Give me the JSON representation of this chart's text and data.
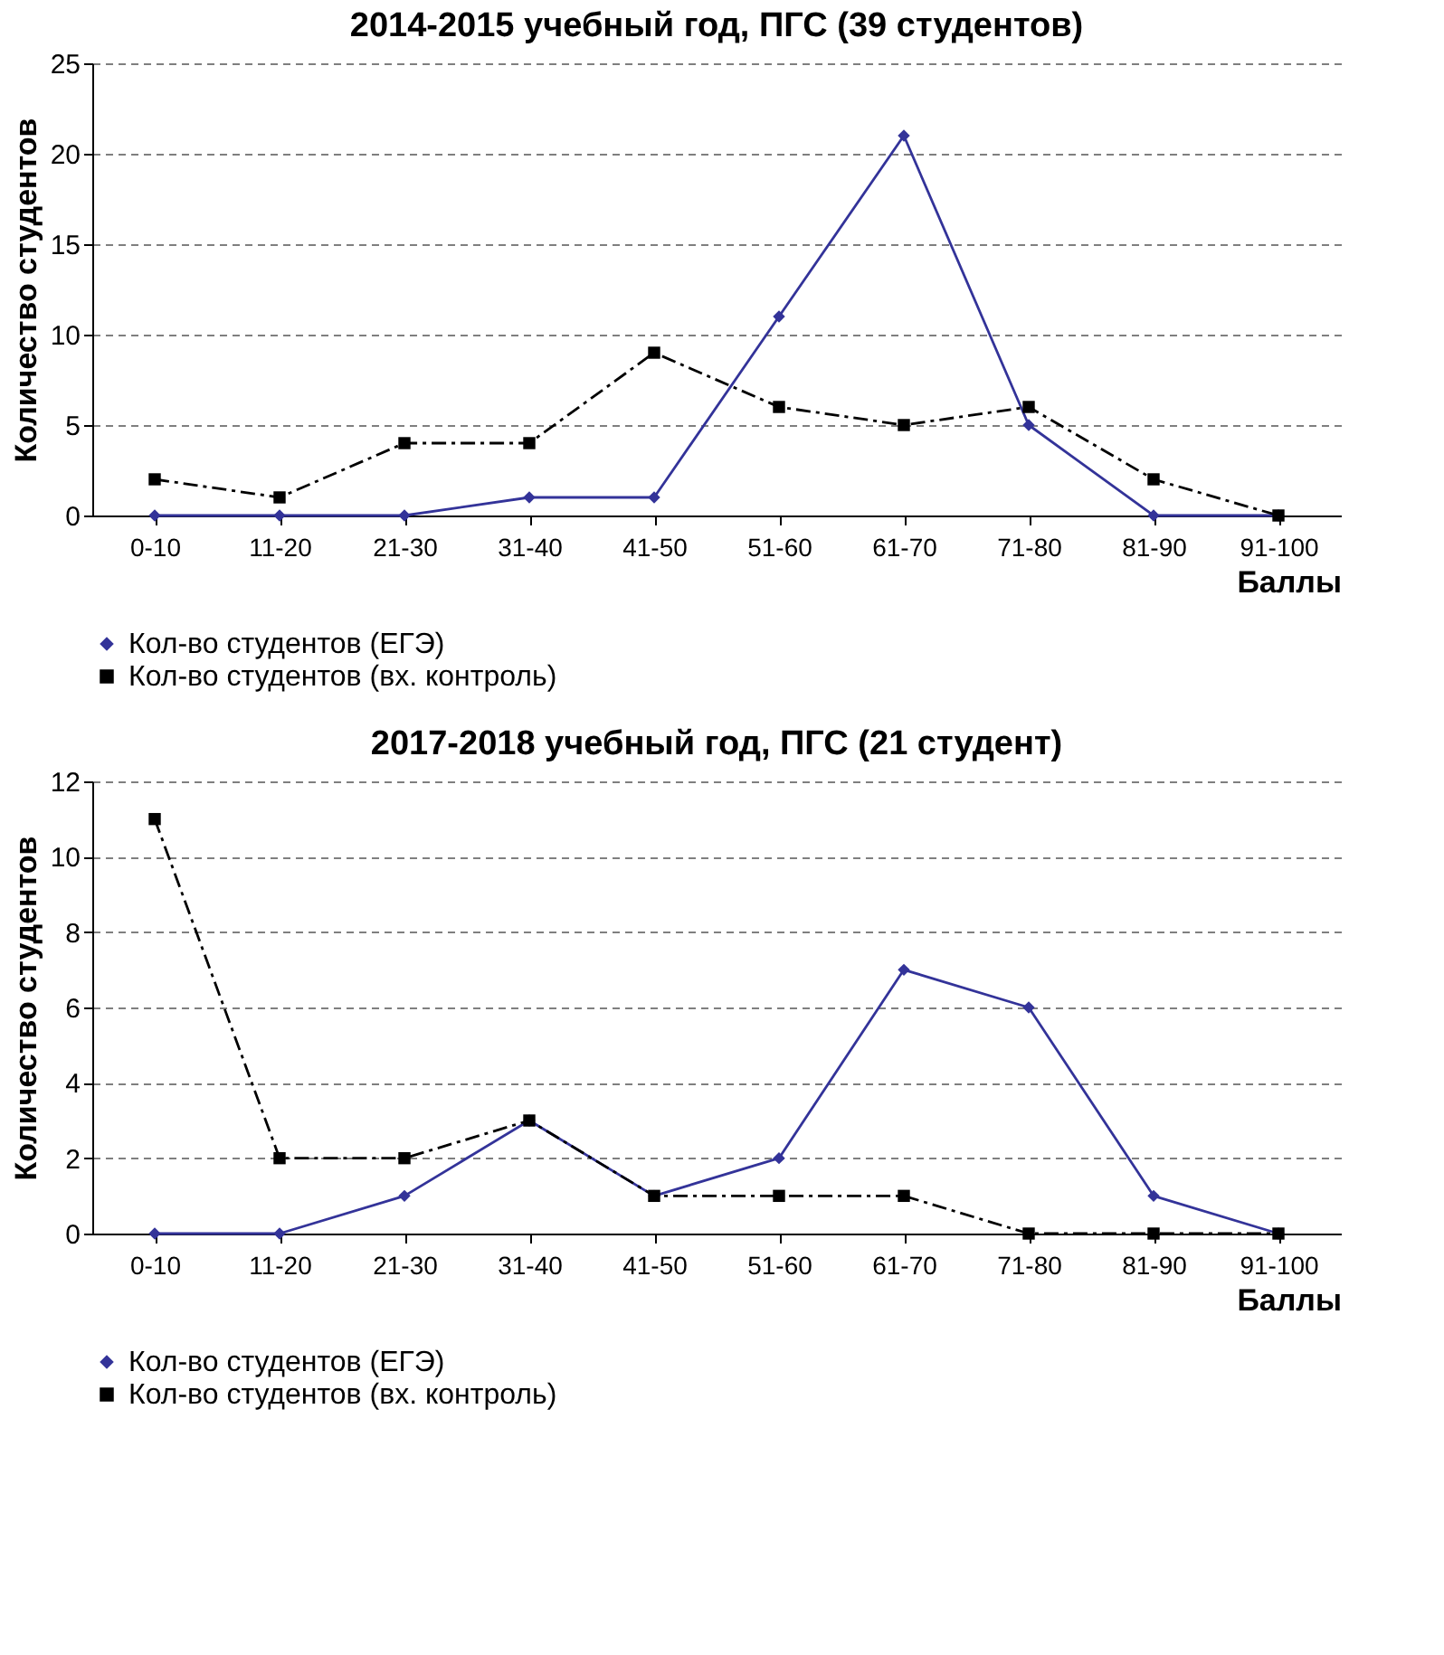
{
  "chart_data": [
    {
      "type": "line",
      "title": "2014-2015 учебный год,  ПГС (39 студентов)",
      "xlabel": "Баллы",
      "ylabel": "Количество студентов",
      "categories": [
        "0-10",
        "11-20",
        "21-30",
        "31-40",
        "41-50",
        "51-60",
        "61-70",
        "71-80",
        "81-90",
        "91-100"
      ],
      "series": [
        {
          "name": "Кол-во студентов (ЕГЭ)",
          "color": "#333399",
          "marker": "diamond",
          "line_style": "solid",
          "values": [
            0,
            0,
            0,
            1,
            1,
            11,
            21,
            5,
            0,
            0
          ]
        },
        {
          "name": "Кол-во студентов (вх. контроль)",
          "color": "#000000",
          "marker": "square",
          "line_style": "dashed",
          "values": [
            2,
            1,
            4,
            4,
            9,
            6,
            5,
            6,
            2,
            0
          ]
        }
      ],
      "ylim": [
        0,
        25
      ],
      "yticks": [
        0,
        5,
        10,
        15,
        20,
        25
      ],
      "grid": "y",
      "legend": "bottom"
    },
    {
      "type": "line",
      "title": "2017-2018 учебный год, ПГС (21 студент)",
      "xlabel": "Баллы",
      "ylabel": "Количество студентов",
      "categories": [
        "0-10",
        "11-20",
        "21-30",
        "31-40",
        "41-50",
        "51-60",
        "61-70",
        "71-80",
        "81-90",
        "91-100"
      ],
      "series": [
        {
          "name": "Кол-во студентов (ЕГЭ)",
          "color": "#333399",
          "marker": "diamond",
          "line_style": "solid",
          "values": [
            0,
            0,
            1,
            3,
            1,
            2,
            7,
            6,
            1,
            0
          ]
        },
        {
          "name": "Кол-во студентов (вх. контроль)",
          "color": "#000000",
          "marker": "square",
          "line_style": "dashed",
          "values": [
            11,
            2,
            2,
            3,
            1,
            1,
            1,
            0,
            0,
            0
          ]
        }
      ],
      "ylim": [
        0,
        12
      ],
      "yticks": [
        0,
        2,
        4,
        6,
        8,
        10,
        12
      ],
      "grid": "y",
      "legend": "bottom"
    }
  ]
}
